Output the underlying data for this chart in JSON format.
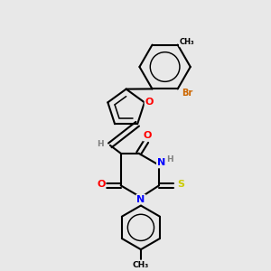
{
  "background_color": "#e8e8e8",
  "atom_colors": {
    "C": "#000000",
    "N": "#0000ff",
    "O": "#ff0000",
    "S": "#cccc00",
    "Br": "#cc6600",
    "H": "#808080"
  },
  "bond_color": "#000000",
  "bond_width": 1.5
}
